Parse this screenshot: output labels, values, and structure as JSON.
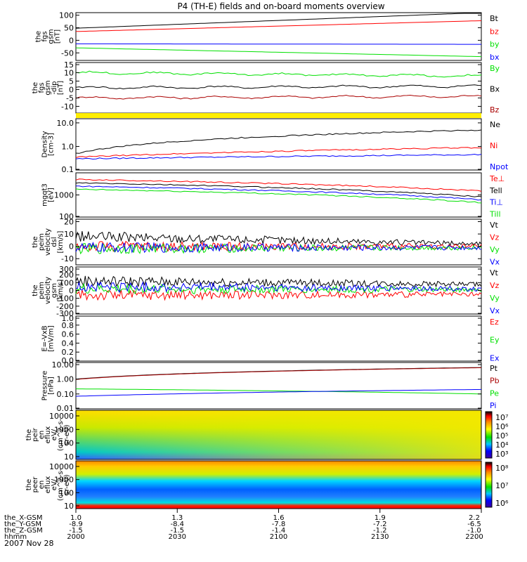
{
  "title": "P4 (TH-E) fields and on-board moments overview",
  "date": "2007 Nov 28",
  "colors": {
    "black": "#000000",
    "red": "#ff0000",
    "darkred": "#aa0000",
    "green": "#00e000",
    "blue": "#0000ff",
    "yellow": "#ffee00"
  },
  "chart_data": [
    {
      "type": "line",
      "name": "fgs-gsm",
      "ylabel": [
        "the",
        "fgs",
        "gsm",
        "[nT]"
      ],
      "yticks": [
        100,
        50,
        0,
        -50
      ],
      "ylim": [
        -80,
        110
      ],
      "series": [
        {
          "name": "Bt",
          "color": "black",
          "start": 48,
          "end": 110
        },
        {
          "name": "bz",
          "color": "red",
          "start": 35,
          "end": 78
        },
        {
          "name": "by",
          "color": "green",
          "start": -30,
          "end": -65
        },
        {
          "name": "bx",
          "color": "blue",
          "start": -14,
          "end": -16
        }
      ],
      "legend": [
        "Bt",
        "bz",
        "by",
        "bx"
      ]
    },
    {
      "type": "line",
      "name": "fgs-gsm-dip",
      "ylabel": [
        "the",
        "fgs",
        "gsm",
        "-dip",
        "[nT]"
      ],
      "yticks": [
        15,
        10,
        5,
        0,
        -5,
        -10
      ],
      "ylim": [
        -14,
        16
      ],
      "series": [
        {
          "name": "By",
          "color": "green",
          "start": 10,
          "end": 8
        },
        {
          "name": "Bx",
          "color": "black",
          "start": 1,
          "end": 2
        },
        {
          "name": "Bz",
          "color": "darkred",
          "start": -5,
          "end": -4
        }
      ],
      "legend": [
        "By",
        "Bx",
        "Bz"
      ]
    },
    {
      "type": "line",
      "name": "density",
      "ylabel": [
        "Density",
        "[cm-3]"
      ],
      "yticks": [
        "10.0",
        "1.0",
        "0.1"
      ],
      "ylim": [
        0.1,
        15
      ],
      "series": [
        {
          "name": "Ne",
          "color": "black",
          "start": 0.5,
          "end": 5
        },
        {
          "name": "Ni",
          "color": "red",
          "start": 0.35,
          "end": 0.9
        },
        {
          "name": "Npot",
          "color": "blue",
          "start": 0.3,
          "end": 0.45
        }
      ],
      "legend": [
        "Ne",
        "Ni",
        "Npot"
      ]
    },
    {
      "type": "line",
      "name": "temperature",
      "ylabel": [
        "mgqt3",
        "[eV]"
      ],
      "yticks": [
        1000,
        100
      ],
      "ylim": [
        100,
        10000
      ],
      "series": [
        {
          "name": "Te⊥",
          "color": "red",
          "start": 5000,
          "end": 1500
        },
        {
          "name": "Te||",
          "color": "black",
          "start": 3500,
          "end": 800
        },
        {
          "name": "Ti⊥",
          "color": "blue",
          "start": 2500,
          "end": 600
        },
        {
          "name": "Ti||",
          "color": "green",
          "start": 1800,
          "end": 450
        }
      ],
      "legend": [
        "Te⊥",
        "Tell",
        "Ti⊥",
        "Till"
      ]
    },
    {
      "type": "line",
      "name": "peim-velocity-dsl",
      "ylabel": [
        "the",
        "peim",
        "velocity",
        "dsl",
        "[km/s]"
      ],
      "yticks": [
        20,
        10,
        0,
        -10
      ],
      "ylim": [
        -15,
        22
      ],
      "series": [
        {
          "name": "Vt",
          "color": "black",
          "start": 8,
          "end": 2
        },
        {
          "name": "Vz",
          "color": "red",
          "start": 0,
          "end": 0
        },
        {
          "name": "Vy",
          "color": "green",
          "start": -2,
          "end": -1
        },
        {
          "name": "Vx",
          "color": "blue",
          "start": -1,
          "end": -1
        }
      ],
      "legend": [
        "Vt",
        "Vz",
        "Vy",
        "Vx"
      ]
    },
    {
      "type": "line",
      "name": "peim-velocity-gsm",
      "ylabel": [
        "the",
        "peim",
        "velocity",
        "gsm",
        "[km/s]"
      ],
      "yticks": [
        300,
        200,
        100,
        0,
        -100,
        -200,
        -300
      ],
      "ylim": [
        -300,
        300
      ],
      "series": [
        {
          "name": "Vt",
          "color": "black",
          "start": 120,
          "end": 80
        },
        {
          "name": "Vz",
          "color": "red",
          "start": -60,
          "end": -50
        },
        {
          "name": "Vy",
          "color": "green",
          "start": 20,
          "end": 10
        },
        {
          "name": "Vx",
          "color": "blue",
          "start": 50,
          "end": 20
        }
      ],
      "legend": [
        "Vt",
        "Vz",
        "Vy",
        "Vx"
      ]
    },
    {
      "type": "line",
      "name": "e-vxb",
      "ylabel": [
        "E=-VxB",
        "[mV/m]"
      ],
      "yticks": [
        "1.0",
        "0.8",
        "0.6",
        "0.4",
        "0.2",
        "0.0"
      ],
      "ylim": [
        0,
        1
      ],
      "series": [],
      "legend": [
        "Ez",
        "Ey",
        "Ex"
      ]
    },
    {
      "type": "line",
      "name": "pressure",
      "ylabel": [
        "Pressure",
        "[nPa]"
      ],
      "yticks": [
        "10.00",
        "1.00",
        "0.10",
        "0.01"
      ],
      "ylim": [
        0.01,
        13
      ],
      "series": [
        {
          "name": "Pt",
          "color": "black",
          "start": 1.0,
          "end": 6
        },
        {
          "name": "Pb",
          "color": "darkred",
          "start": 0.95,
          "end": 5.8
        },
        {
          "name": "Pe",
          "color": "green",
          "start": 0.22,
          "end": 0.1
        },
        {
          "name": "Pi",
          "color": "blue",
          "start": 0.07,
          "end": 0.2
        }
      ],
      "legend": [
        "Pt",
        "Pb",
        "Pe",
        "Pi"
      ]
    },
    {
      "type": "heatmap",
      "name": "peir-en-eflux",
      "ylabel": [
        "the",
        "peir",
        "en",
        "eflux",
        "eV/",
        "(cm^2-s-",
        "sr-eV)"
      ],
      "yticks": [
        10000,
        1000,
        100,
        10
      ],
      "colorbar_ticks": [
        "10⁷",
        "10⁶",
        "10⁵",
        "10⁴",
        "10³"
      ]
    },
    {
      "type": "heatmap",
      "name": "peer-en-eflux",
      "ylabel": [
        "the",
        "peer",
        "en",
        "eflux",
        "eV/",
        "(cm^2-s-",
        "sr-eV)"
      ],
      "yticks": [
        10000,
        1000,
        100,
        10
      ],
      "colorbar_ticks": [
        "10⁸",
        "10⁷",
        "10⁶"
      ]
    }
  ],
  "xaxis": {
    "rows": [
      {
        "label": "the_X-GSM",
        "values": [
          "1.0",
          "1.3",
          "1.6",
          "1.9",
          "2.2"
        ]
      },
      {
        "label": "the_Y-GSM",
        "values": [
          "-8.9",
          "-8.4",
          "-7.8",
          "-7.2",
          "-6.5"
        ]
      },
      {
        "label": "the_Z-GSM",
        "values": [
          "-1.5",
          "-1.5",
          "-1.4",
          "-1.2",
          "-1.0"
        ]
      },
      {
        "label": "hhmm",
        "values": [
          "2000",
          "2030",
          "2100",
          "2130",
          "2200"
        ]
      }
    ]
  }
}
